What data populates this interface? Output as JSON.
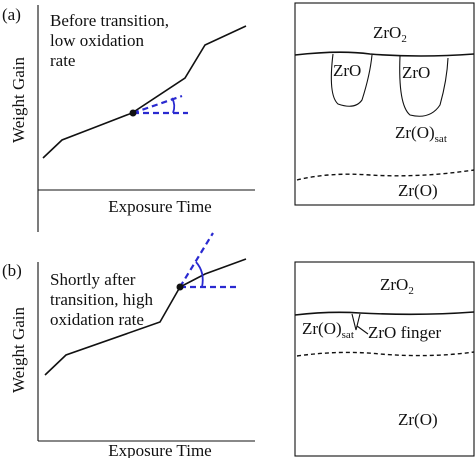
{
  "panels": [
    {
      "label": "(a)",
      "graph": {
        "annotation": [
          "Before transition,",
          "low oxidation",
          "rate"
        ],
        "y_label": "Weight Gain",
        "x_label": "Exposure Time"
      },
      "schematic": {
        "top_layer": {
          "base": "ZrO",
          "sub": "2"
        },
        "features": [
          "ZrO",
          "ZrO"
        ],
        "saturated_layer": {
          "base": "Zr(O)",
          "sub": "sat"
        },
        "bottom_layer": "Zr(O)"
      }
    },
    {
      "label": "(b)",
      "graph": {
        "annotation": [
          "Shortly after",
          "transition, high",
          "oxidation rate"
        ],
        "y_label": "Weight Gain",
        "x_label": "Exposure Time"
      },
      "schematic": {
        "top_layer": {
          "base": "ZrO",
          "sub": "2"
        },
        "features": [
          "ZrO finger"
        ],
        "saturated_layer": {
          "base": "Zr(O)",
          "sub": "sat"
        },
        "bottom_layer": "Zr(O)"
      }
    }
  ]
}
